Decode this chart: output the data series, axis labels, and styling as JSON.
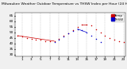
{
  "title": "Milwaukee Weather Outdoor Temperature vs THSW Index per Hour (24 Hours)",
  "title_fontsize": 3.2,
  "background_color": "#f0f0f0",
  "plot_bg_color": "#ffffff",
  "grid_color": "#bbbbbb",
  "temp_color": "#cc0000",
  "thsw_color": "#0000cc",
  "temp_data": [
    [
      0,
      47
    ],
    [
      1,
      46
    ],
    [
      2,
      45
    ],
    [
      3,
      44
    ],
    [
      4,
      43
    ],
    [
      5,
      43
    ],
    [
      6,
      42
    ],
    [
      7,
      42
    ],
    [
      8,
      42
    ],
    [
      9,
      44
    ],
    [
      10,
      47
    ],
    [
      11,
      49
    ],
    [
      12,
      52
    ],
    [
      13,
      55
    ],
    [
      14,
      57
    ],
    [
      15,
      57
    ],
    [
      16,
      56
    ],
    [
      17,
      53
    ],
    [
      18,
      50
    ],
    [
      19,
      47
    ],
    [
      20,
      45
    ],
    [
      21,
      43
    ],
    [
      22,
      42
    ],
    [
      23,
      41
    ]
  ],
  "thsw_data": [
    [
      8,
      41
    ],
    [
      9,
      43
    ],
    [
      10,
      46
    ],
    [
      11,
      49
    ],
    [
      12,
      51
    ],
    [
      13,
      53
    ],
    [
      14,
      52
    ],
    [
      15,
      50
    ],
    [
      16,
      47
    ],
    [
      17,
      44
    ],
    [
      18,
      41
    ]
  ],
  "temp_segments": [
    [
      [
        0,
        8
      ],
      [
        47,
        42
      ]
    ],
    [
      [
        14,
        15
      ],
      [
        57,
        57
      ]
    ]
  ],
  "thsw_segments": [
    [
      [
        13,
        15
      ],
      [
        53,
        50
      ]
    ]
  ],
  "ylim": [
    28,
    68
  ],
  "yticks": [
    30,
    35,
    40,
    45,
    50,
    55,
    60,
    65
  ],
  "xticks": [
    1,
    3,
    5,
    7,
    9,
    11,
    13,
    15,
    17,
    19,
    21,
    23
  ],
  "tick_fontsize": 3.0,
  "legend_fontsize": 3.0,
  "dot_size": 1.2
}
